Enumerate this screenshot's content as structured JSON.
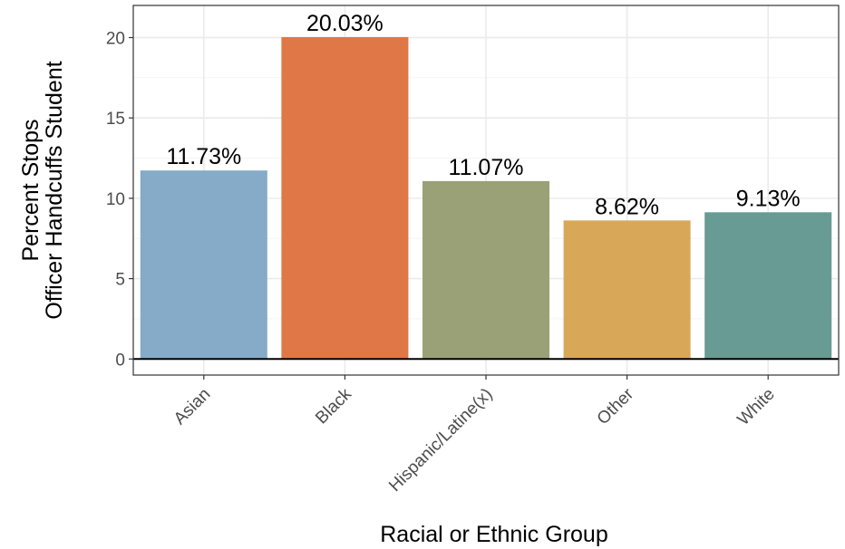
{
  "chart_data": {
    "type": "bar",
    "categories": [
      "Asian",
      "Black",
      "Hispanic/Latine(x)",
      "Other",
      "White"
    ],
    "values": [
      11.73,
      20.03,
      11.07,
      8.62,
      9.13
    ],
    "data_labels": [
      "11.73%",
      "20.03%",
      "11.07%",
      "8.62%",
      "9.13%"
    ],
    "colors": [
      "#85abc8",
      "#e07746",
      "#9ba176",
      "#d8a858",
      "#689b93"
    ],
    "xlabel": "Racial or Ethnic Group",
    "ylabel_lines": [
      "Percent Stops",
      "Officer Handcuffs Student"
    ],
    "yticks": [
      0,
      5,
      10,
      15,
      20
    ],
    "ytick_labels": [
      "0",
      "5",
      "10",
      "15",
      "20"
    ],
    "ylim": [
      -1,
      22
    ],
    "grid": true,
    "legend": "none"
  }
}
